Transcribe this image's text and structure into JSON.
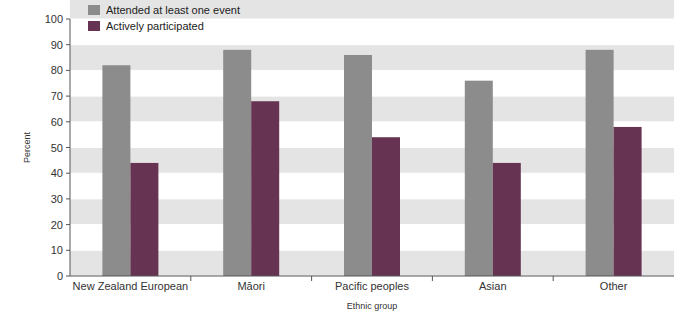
{
  "chart_data": {
    "type": "bar",
    "x_label": "Ethnic group",
    "y_label": "Percent",
    "categories": [
      "New Zealand European",
      "Māori",
      "Pacific peoples",
      "Asian",
      "Other"
    ],
    "series": [
      {
        "name": "Attended at least one event",
        "color": "#8c8c8c",
        "values": [
          82,
          88,
          86,
          76,
          88
        ]
      },
      {
        "name": "Actively participated",
        "color": "#663452",
        "values": [
          44,
          68,
          54,
          44,
          58
        ]
      }
    ],
    "ylim": [
      0,
      100
    ],
    "yticks": [
      0,
      10,
      20,
      30,
      40,
      50,
      60,
      70,
      80,
      90,
      100
    ],
    "grid": true,
    "legend": "top-left"
  }
}
